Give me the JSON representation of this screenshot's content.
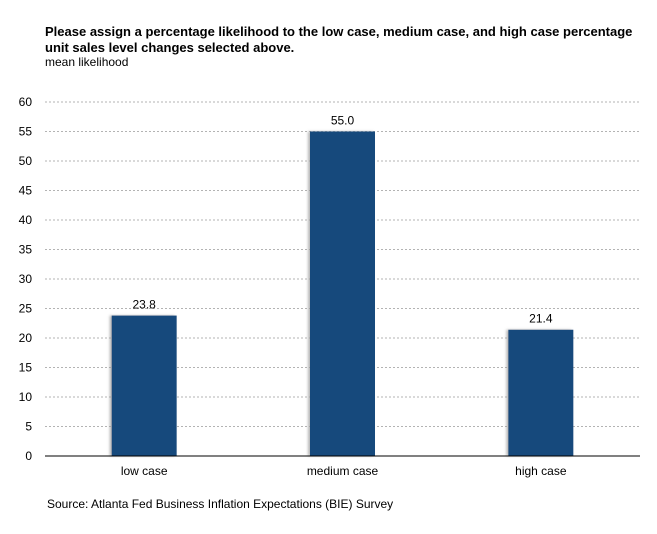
{
  "chart_data": {
    "type": "bar",
    "title": "Please assign a percentage likelihood to the low case, medium case, and high case percentage unit sales level changes selected above.",
    "subtitle": "mean likelihood",
    "xlabel": "",
    "ylabel": "",
    "categories": [
      "low case",
      "medium case",
      "high case"
    ],
    "values": [
      23.8,
      55.0,
      21.4
    ],
    "data_labels": [
      "23.8",
      "55.0",
      "21.4"
    ],
    "ylim": [
      0,
      60
    ],
    "yticks": [
      0,
      5,
      10,
      15,
      20,
      25,
      30,
      35,
      40,
      45,
      50,
      55,
      60
    ],
    "grid": "horizontal dashed",
    "legend": "none",
    "bar_color": "#154a7c",
    "source": "Source: Atlanta Fed Business Inflation Expectations (BIE) Survey"
  }
}
